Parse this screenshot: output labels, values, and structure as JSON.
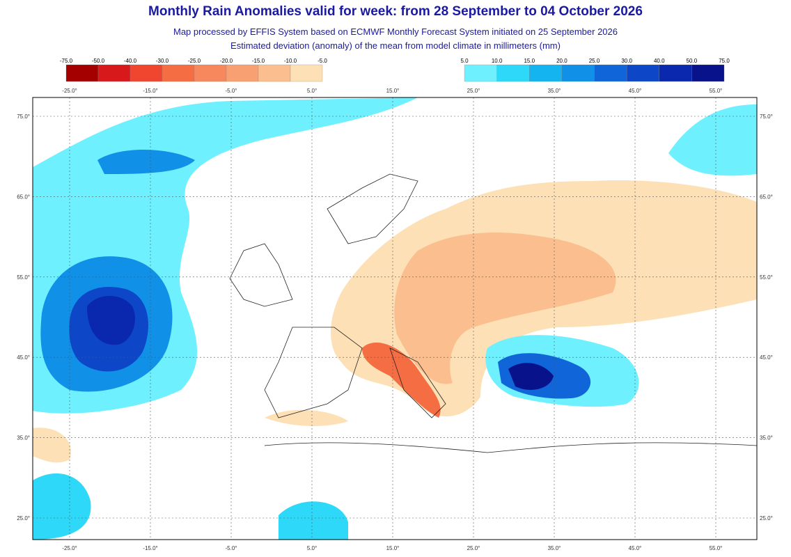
{
  "header": {
    "title": "Monthly Rain Anomalies valid for week: from 28 September to 04 October 2026",
    "subtitle": "Map processed by EFFIS System based on ECMWF Monthly Forecast System initiated on 25 September 2026",
    "description": "Estimated deviation (anomaly) of the mean from model climate in millimeters (mm)"
  },
  "legend": {
    "negative": {
      "labels": [
        "-75.0",
        "-50.0",
        "-40.0",
        "-30.0",
        "-25.0",
        "-20.0",
        "-15.0",
        "-10.0",
        "-5.0"
      ],
      "colors": [
        "#a50000",
        "#d7191c",
        "#f0452e",
        "#f46d43",
        "#f7875d",
        "#f9a072",
        "#fbbf8f",
        "#fde0b5"
      ]
    },
    "positive": {
      "labels": [
        "5.0",
        "10.0",
        "15.0",
        "20.0",
        "25.0",
        "30.0",
        "40.0",
        "50.0",
        "75.0"
      ],
      "colors": [
        "#6ff0ff",
        "#2ed8f8",
        "#14b4f0",
        "#1090e6",
        "#1066d8",
        "#0d47c8",
        "#0a28ad",
        "#08128a"
      ]
    }
  },
  "axes": {
    "lon_labels": [
      "-25.0°",
      "-15.0°",
      "-5.0°",
      "5.0°",
      "15.0°",
      "25.0°",
      "35.0°",
      "45.0°",
      "55.0°"
    ],
    "lat_labels": [
      "75.0°",
      "65.0°",
      "55.0°",
      "45.0°",
      "35.0°",
      "25.0°"
    ]
  }
}
